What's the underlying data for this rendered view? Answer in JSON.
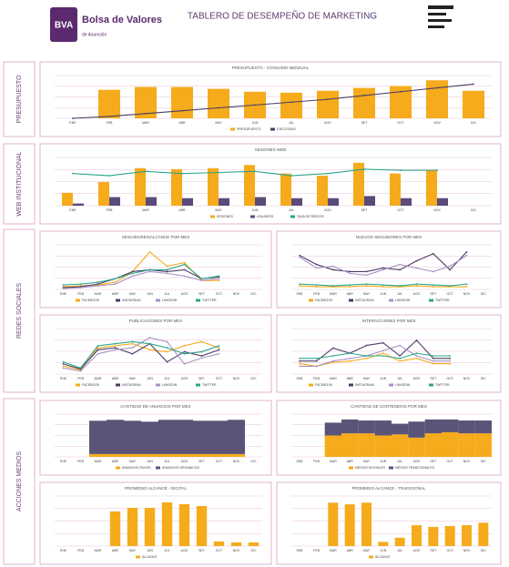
{
  "header": {
    "logo": "BVA",
    "brand": "Bolsa de Valores",
    "brand_sub": "de Asunción",
    "title": "TABLERO DE DESEMPEÑO DE MARKETING"
  },
  "sections": [
    "PRESUPUESTO",
    "WEB INSTITUCIONAL",
    "REDES SOCIALES",
    "ACCIONES MEDIOS"
  ],
  "chart_data": [
    {
      "type": "combo",
      "title": "PRESUPUESTO - CONSUMO MENSUAL",
      "categories": [
        "ENE",
        "FEB",
        "MAR",
        "ABR",
        "MAY",
        "JUN",
        "JUL",
        "AGO",
        "SET",
        "OCT",
        "NOV",
        "DIC"
      ],
      "series": [
        {
          "name": "PRESUPUESTO",
          "color": "#f5ab1b",
          "values": [
            0,
            30,
            33,
            33,
            31,
            28,
            27,
            29,
            32,
            34,
            40,
            29
          ]
        },
        {
          "name": "EJECUTADO",
          "color": "#4a3d66",
          "mark": "line",
          "values": [
            0,
            2,
            5,
            8,
            11,
            14,
            17,
            20,
            24,
            28,
            32,
            36
          ]
        }
      ],
      "ylim": [
        0,
        45
      ],
      "grid": true
    },
    {
      "type": "combo",
      "title": "SESIONES WEB",
      "categories": [
        "ENE",
        "FEB",
        "MAR",
        "ABR",
        "MAY",
        "JUN",
        "JUL",
        "AGO",
        "SET",
        "OCT",
        "NOV",
        "DIC"
      ],
      "series": [
        {
          "name": "SESIONES",
          "color": "#f5ab1b",
          "values": [
            12,
            22,
            35,
            34,
            35,
            38,
            30,
            28,
            40,
            30,
            33,
            null
          ]
        },
        {
          "name": "USUARIOS",
          "color": "#5b4b7a",
          "values": [
            2,
            8,
            8,
            7,
            7,
            8,
            7,
            7,
            9,
            7,
            7,
            null
          ]
        },
        {
          "name": "TASA DE REBOTE",
          "color": "#2aa58a",
          "mark": "line",
          "values": [
            30,
            28,
            32,
            30,
            31,
            32,
            28,
            30,
            34,
            33,
            33,
            null
          ]
        }
      ],
      "ylim": [
        0,
        45
      ],
      "grid": true
    },
    {
      "type": "line",
      "title": "SEGUIDORES/ALCANCE POR MES",
      "categories": [
        "ENE",
        "FEB",
        "MAR",
        "ABR",
        "MAY",
        "JUN",
        "JUL",
        "AGO",
        "SET",
        "OCT",
        "NOV",
        "DIC"
      ],
      "series": [
        {
          "name": "FACEBOOK",
          "color": "#f5ab1b",
          "values": [
            3,
            4,
            5,
            8,
            20,
            42,
            26,
            30,
            10,
            10,
            null,
            null
          ]
        },
        {
          "name": "INSTAGRAM",
          "color": "#4a3d66",
          "values": [
            2,
            3,
            6,
            12,
            20,
            22,
            20,
            22,
            12,
            14,
            null,
            null
          ]
        },
        {
          "name": "LINKEDIN",
          "color": "#a892c4",
          "values": [
            1,
            2,
            4,
            6,
            15,
            20,
            18,
            15,
            10,
            12,
            null,
            null
          ]
        },
        {
          "name": "TWITTER",
          "color": "#2aa58a",
          "values": [
            5,
            6,
            8,
            12,
            18,
            22,
            22,
            28,
            12,
            15,
            null,
            null
          ]
        }
      ],
      "ylim": [
        0,
        50
      ],
      "grid": true
    },
    {
      "type": "line",
      "title": "NUEVOS SEGUIDORES POR MES",
      "categories": [
        "ENE",
        "FEB",
        "MAR",
        "ABR",
        "MAY",
        "JUN",
        "JUL",
        "AGO",
        "SET",
        "OCT",
        "NOV",
        "DIC"
      ],
      "series": [
        {
          "name": "FACEBOOK",
          "color": "#f5ab1b",
          "values": [
            4,
            3,
            3,
            3,
            4,
            3,
            3,
            4,
            3,
            3,
            3,
            null
          ]
        },
        {
          "name": "INSTAGRAM",
          "color": "#4a3d66",
          "values": [
            38,
            28,
            22,
            20,
            20,
            24,
            22,
            32,
            40,
            22,
            42,
            null
          ]
        },
        {
          "name": "LINKEDIN",
          "color": "#a892c4",
          "values": [
            36,
            24,
            26,
            18,
            16,
            22,
            28,
            24,
            20,
            26,
            38,
            null
          ]
        },
        {
          "name": "TWITTER",
          "color": "#2aa58a",
          "values": [
            6,
            5,
            4,
            5,
            6,
            5,
            4,
            6,
            5,
            4,
            6,
            null
          ]
        }
      ],
      "ylim": [
        0,
        50
      ],
      "grid": true
    },
    {
      "type": "line",
      "title": "PUBLICACIONES POR MES",
      "categories": [
        "ENE",
        "FEB",
        "MAR",
        "ABR",
        "MAY",
        "JUN",
        "JUL",
        "AGO",
        "SET",
        "OCT",
        "NOV",
        "DIC"
      ],
      "series": [
        {
          "name": "FACEBOOK",
          "color": "#f5ab1b",
          "values": [
            8,
            4,
            26,
            28,
            30,
            24,
            22,
            28,
            32,
            26,
            null,
            null
          ]
        },
        {
          "name": "INSTAGRAM",
          "color": "#4a3d66",
          "values": [
            10,
            5,
            24,
            26,
            20,
            30,
            12,
            22,
            18,
            24,
            null,
            null
          ]
        },
        {
          "name": "LINKEDIN",
          "color": "#a892c4",
          "values": [
            6,
            3,
            20,
            24,
            26,
            36,
            32,
            10,
            16,
            20,
            null,
            null
          ]
        },
        {
          "name": "TWITTER",
          "color": "#2aa58a",
          "values": [
            12,
            6,
            28,
            30,
            32,
            30,
            26,
            20,
            22,
            28,
            null,
            null
          ]
        }
      ],
      "ylim": [
        0,
        45
      ],
      "grid": true
    },
    {
      "type": "line",
      "title": "INTERACCIONES POR MES",
      "categories": [
        "ENE",
        "FEB",
        "MAR",
        "ABR",
        "MAY",
        "JUN",
        "JUL",
        "AGO",
        "SET",
        "OCT",
        "NOV",
        "DIC"
      ],
      "series": [
        {
          "name": "FACEBOOK",
          "color": "#f5ab1b",
          "values": [
            8,
            6,
            9,
            10,
            12,
            16,
            10,
            12,
            8,
            8,
            null,
            null
          ]
        },
        {
          "name": "INSTAGRAM",
          "color": "#4a3d66",
          "values": [
            10,
            10,
            20,
            16,
            22,
            24,
            14,
            26,
            12,
            12,
            null,
            null
          ]
        },
        {
          "name": "LINKEDIN",
          "color": "#a892c4",
          "values": [
            6,
            6,
            10,
            12,
            14,
            18,
            22,
            14,
            10,
            10,
            null,
            null
          ]
        },
        {
          "name": "TWITTER",
          "color": "#2aa58a",
          "values": [
            12,
            12,
            14,
            16,
            14,
            14,
            12,
            16,
            14,
            14,
            null,
            null
          ]
        }
      ],
      "ylim": [
        0,
        35
      ],
      "grid": true
    },
    {
      "type": "stacked_bar",
      "title": "CANTIDAD DE ANUNCIOS POR MES",
      "categories": [
        "ENE",
        "FEB",
        "MAR",
        "ABR",
        "MAY",
        "JUN",
        "JUL",
        "AGO",
        "SET",
        "OCT",
        "NOV",
        "DIC"
      ],
      "series": [
        {
          "name": "ANUNCIOS PAGOS",
          "color": "#f5ab1b",
          "values": [
            null,
            null,
            3,
            3,
            3,
            3,
            3,
            3,
            3,
            3,
            3,
            null
          ]
        },
        {
          "name": "ANUNCIOS ORGANICOS",
          "color": "#5b5478",
          "values": [
            null,
            null,
            35,
            36,
            35,
            34,
            36,
            36,
            35,
            35,
            36,
            null
          ]
        }
      ],
      "ylim": [
        0,
        45
      ],
      "grid": true
    },
    {
      "type": "stacked_bar",
      "title": "CANTIDAD DE CONTENIDOS POR MES",
      "categories": [
        "ENE",
        "FEB",
        "MAR",
        "ABR",
        "MAY",
        "JUN",
        "JUL",
        "AGO",
        "SET",
        "OCT",
        "NOV",
        "DIC"
      ],
      "series": [
        {
          "name": "MEDIOS DIGITALES",
          "color": "#f5ab1b",
          "values": [
            null,
            null,
            20,
            22,
            22,
            20,
            21,
            18,
            22,
            23,
            22,
            22
          ]
        },
        {
          "name": "MEDIOS TRADICIONALES",
          "color": "#5b5478",
          "values": [
            null,
            null,
            12,
            13,
            12,
            14,
            10,
            15,
            13,
            12,
            12,
            12
          ]
        }
      ],
      "ylim": [
        0,
        40
      ],
      "grid": true
    },
    {
      "type": "bar",
      "title": "PROMEDIO ALCANCE - DIGITAL",
      "categories": [
        "ENE",
        "FEB",
        "MAR",
        "ABR",
        "MAY",
        "JUN",
        "JUL",
        "AGO",
        "SET",
        "OCT",
        "NOV",
        "DIC"
      ],
      "series": [
        {
          "name": "ALCANCE",
          "color": "#f5ab1b",
          "values": [
            0,
            0,
            0,
            38,
            42,
            42,
            48,
            46,
            44,
            5,
            4,
            4
          ]
        }
      ],
      "ylim": [
        0,
        55
      ],
      "grid": true
    },
    {
      "type": "bar",
      "title": "PROMEDIO ALCANCE - TRADICIONAL",
      "categories": [
        "ENE",
        "FEB",
        "MAR",
        "ABR",
        "MAY",
        "JUN",
        "JUL",
        "AGO",
        "SET",
        "OCT",
        "NOV",
        "DIC"
      ],
      "series": [
        {
          "name": "ALCANCE",
          "color": "#f5ab1b",
          "values": [
            0,
            0,
            52,
            50,
            52,
            5,
            10,
            25,
            23,
            24,
            25,
            28
          ]
        }
      ],
      "ylim": [
        0,
        60
      ],
      "grid": true
    }
  ]
}
